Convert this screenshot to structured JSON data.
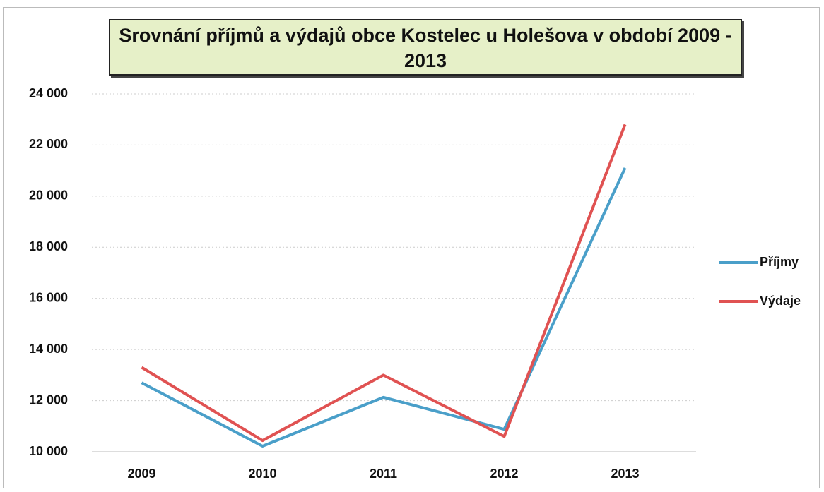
{
  "chart_data": {
    "type": "line",
    "title": "Srovnání příjmů a výdajů obce Kostelec u Holešova v období 2009 - 2013",
    "categories": [
      "2009",
      "2010",
      "2011",
      "2012",
      "2013"
    ],
    "series": [
      {
        "name": "Příjmy",
        "color": "#4a9fc9",
        "values": [
          12700,
          10220,
          12130,
          10880,
          21100
        ]
      },
      {
        "name": "Výdaje",
        "color": "#e05252",
        "values": [
          13300,
          10440,
          13000,
          10600,
          22800
        ]
      }
    ],
    "ylim": [
      10000,
      24000
    ],
    "yticks": [
      {
        "value": 10000,
        "label": "10 000"
      },
      {
        "value": 12000,
        "label": "12 000"
      },
      {
        "value": 14000,
        "label": "14 000"
      },
      {
        "value": 16000,
        "label": "16 000"
      },
      {
        "value": 18000,
        "label": "18 000"
      },
      {
        "value": 20000,
        "label": "20 000"
      },
      {
        "value": 22000,
        "label": "22 000"
      },
      {
        "value": 24000,
        "label": "24 000"
      }
    ],
    "grid": true,
    "legend": "right"
  }
}
